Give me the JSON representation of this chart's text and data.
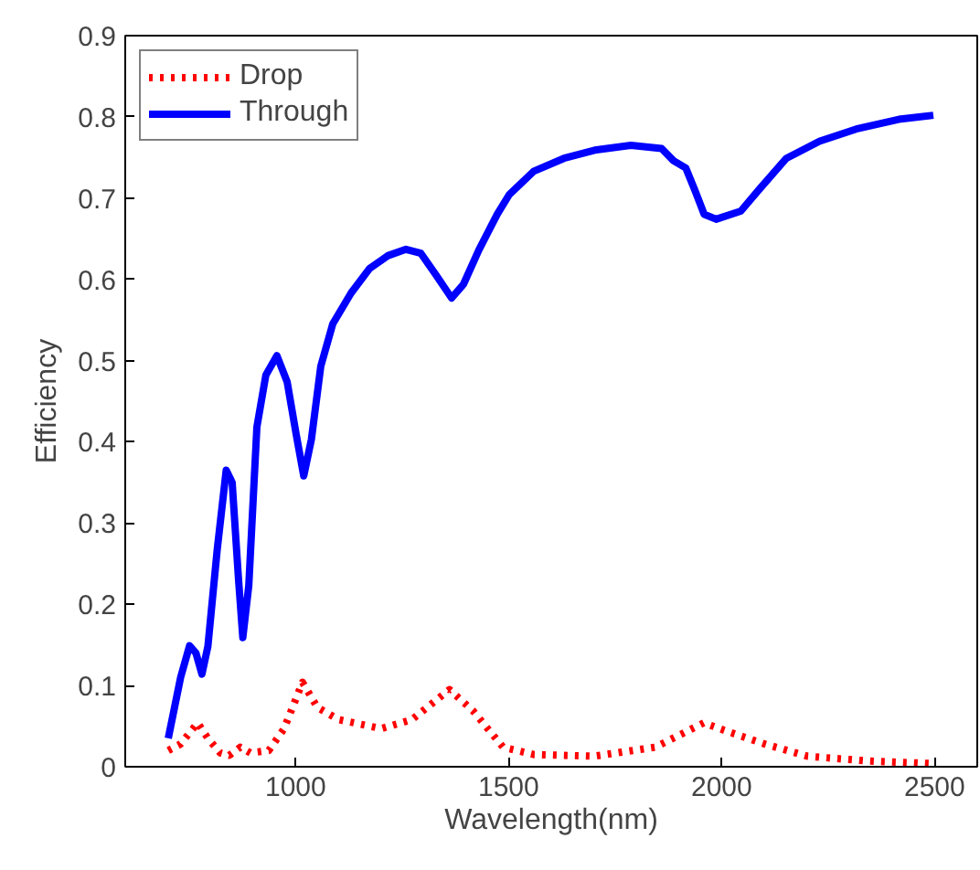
{
  "chart_data": {
    "type": "line",
    "xlabel": "Wavelength(nm)",
    "ylabel": "Efficiency",
    "xlim": [
      600,
      2600
    ],
    "xticks": [
      1000,
      1500,
      2000,
      2500
    ],
    "ylim": [
      0,
      0.9
    ],
    "yticks": [
      0,
      0.1,
      0.2,
      0.3,
      0.4,
      0.5,
      0.6,
      0.7,
      0.8,
      0.9
    ],
    "grid": false,
    "legend": "top left",
    "series": [
      {
        "name": "Drop",
        "color": "#ff0000",
        "line_style": "dotted",
        "x": [
          701,
          730,
          770,
          794,
          823,
          844,
          870,
          894,
          937,
          973,
          1016,
          1051,
          1101,
          1201,
          1273,
          1361,
          1416,
          1487,
          1559,
          1701,
          1844,
          1958,
          2016,
          2101,
          2201,
          2344,
          2494
        ],
        "values": [
          0.02,
          0.028,
          0.054,
          0.035,
          0.017,
          0.014,
          0.024,
          0.017,
          0.02,
          0.047,
          0.104,
          0.073,
          0.058,
          0.047,
          0.058,
          0.095,
          0.069,
          0.024,
          0.015,
          0.013,
          0.024,
          0.054,
          0.043,
          0.028,
          0.013,
          0.007,
          0.004
        ]
      },
      {
        "name": "Through",
        "color": "#0000ff",
        "line_style": "solid",
        "x": [
          701,
          730,
          751,
          766,
          780,
          794,
          816,
          837,
          851,
          866,
          876,
          890,
          909,
          930,
          956,
          980,
          1001,
          1019,
          1037,
          1059,
          1087,
          1130,
          1173,
          1216,
          1259,
          1294,
          1330,
          1366,
          1394,
          1430,
          1473,
          1501,
          1559,
          1630,
          1702,
          1787,
          1859,
          1887,
          1916,
          1937,
          1959,
          1987,
          2045,
          2087,
          2152,
          2230,
          2316,
          2416,
          2497
        ],
        "values": [
          0.035,
          0.11,
          0.149,
          0.14,
          0.114,
          0.148,
          0.268,
          0.365,
          0.35,
          0.23,
          0.159,
          0.223,
          0.418,
          0.482,
          0.506,
          0.474,
          0.41,
          0.358,
          0.403,
          0.493,
          0.545,
          0.583,
          0.613,
          0.629,
          0.637,
          0.632,
          0.605,
          0.577,
          0.594,
          0.636,
          0.68,
          0.704,
          0.733,
          0.749,
          0.759,
          0.765,
          0.761,
          0.746,
          0.737,
          0.71,
          0.68,
          0.674,
          0.684,
          0.71,
          0.749,
          0.77,
          0.785,
          0.797,
          0.802
        ]
      }
    ]
  }
}
